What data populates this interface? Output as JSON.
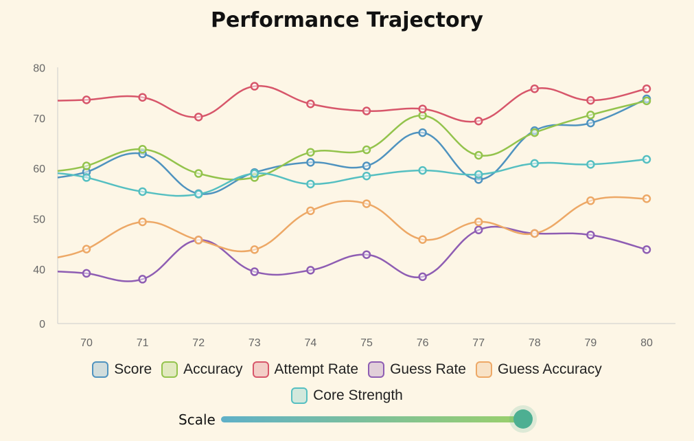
{
  "chart_data": {
    "type": "line",
    "title": "Performance Trajectory",
    "x": [
      70,
      71,
      72,
      73,
      74,
      75,
      76,
      77,
      78,
      79,
      80
    ],
    "xlabel": "",
    "ylabel": "",
    "y_ticks": [
      0,
      40,
      50,
      60,
      70,
      80
    ],
    "series": [
      {
        "name": "Score",
        "color": "#4f93bf",
        "values": [
          59.3,
          62.9,
          55.0,
          59.2,
          61.2,
          60.5,
          67.1,
          57.8,
          67.5,
          69.0,
          73.8
        ]
      },
      {
        "name": "Accuracy",
        "color": "#93c34c",
        "values": [
          60.5,
          63.8,
          59.0,
          58.2,
          63.2,
          63.7,
          70.5,
          62.6,
          67.1,
          70.6,
          73.4
        ]
      },
      {
        "name": "Attempt Rate",
        "color": "#d7566a",
        "values": [
          73.6,
          74.1,
          70.2,
          76.3,
          72.8,
          71.4,
          71.8,
          69.4,
          75.8,
          73.5,
          75.8
        ]
      },
      {
        "name": "Guess Rate",
        "color": "#8e5db3",
        "values": [
          37.0,
          32.7,
          45.8,
          38.2,
          39.3,
          42.9,
          34.5,
          47.8,
          47.1,
          46.8,
          43.9
        ]
      },
      {
        "name": "Guess Accuracy",
        "color": "#eda866",
        "values": [
          44.0,
          49.4,
          45.8,
          43.9,
          51.6,
          53.0,
          45.9,
          49.4,
          47.1,
          53.6,
          54.0
        ]
      },
      {
        "name": "Core Strength",
        "color": "#55bfc1",
        "values": [
          58.2,
          55.4,
          54.9,
          59.0,
          56.9,
          58.5,
          59.6,
          58.8,
          61.0,
          60.8,
          61.8
        ]
      }
    ]
  },
  "slider": {
    "label": "Scale",
    "value_fraction": 1.0
  }
}
